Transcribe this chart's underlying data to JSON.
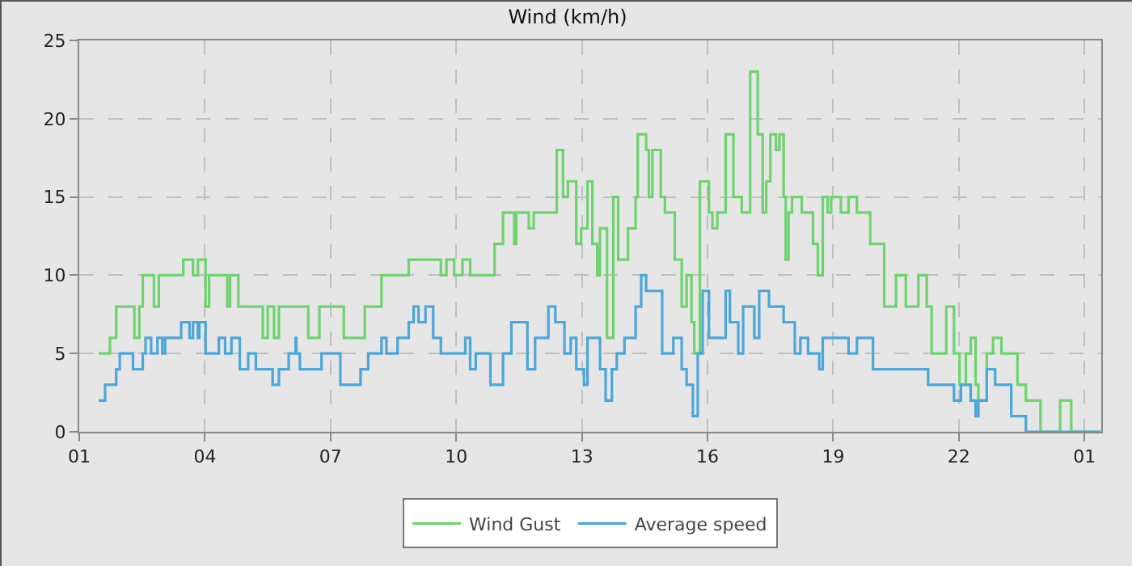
{
  "chart_data": {
    "type": "step",
    "title": "Wind (km/h)",
    "xlim": [
      "--01-01T01:00",
      "--01-02T01:24"
    ],
    "xticks": [
      {
        "value": "--01-01T01:00",
        "label": "01"
      },
      {
        "value": "--01-01T04:00",
        "label": "04"
      },
      {
        "value": "--01-01T07:00",
        "label": "07"
      },
      {
        "value": "--01-01T10:00",
        "label": "10"
      },
      {
        "value": "--01-01T13:00",
        "label": "13"
      },
      {
        "value": "--01-01T16:00",
        "label": "16"
      },
      {
        "value": "--01-01T19:00",
        "label": "19"
      },
      {
        "value": "--01-01T22:00",
        "label": "22"
      },
      {
        "value": "--01-02T01:00",
        "label": "01"
      }
    ],
    "ylim": [
      0,
      25
    ],
    "yticks": [
      0,
      5,
      10,
      15,
      20,
      25
    ],
    "grid": true,
    "legend": "bottom",
    "line_style": "solid",
    "marker": "none",
    "series": [
      {
        "name": "Wind Gust",
        "color": "#6ed36e",
        "x": [
          "--01-01T01:28",
          "--01-01T01:44",
          "--01-01T01:53",
          "--01-01T02:19",
          "--01-01T02:26",
          "--01-01T02:31",
          "--01-01T02:47",
          "--01-01T02:54",
          "--01-01T03:29",
          "--01-01T03:43",
          "--01-01T03:50",
          "--01-01T04:01",
          "--01-01T04:06",
          "--01-01T04:32",
          "--01-01T04:36",
          "--01-01T04:48",
          "--01-01T05:23",
          "--01-01T05:30",
          "--01-01T05:39",
          "--01-01T05:46",
          "--01-01T06:28",
          "--01-01T06:44",
          "--01-01T07:19",
          "--01-01T07:49",
          "--01-01T08:13",
          "--01-01T08:52",
          "--01-01T09:38",
          "--01-01T09:46",
          "--01-01T09:57",
          "--01-01T10:09",
          "--01-01T10:20",
          "--01-01T10:55",
          "--01-01T11:07",
          "--01-01T11:23",
          "--01-01T11:26",
          "--01-01T11:44",
          "--01-01T11:51",
          "--01-01T12:24",
          "--01-01T12:33",
          "--01-01T12:40",
          "--01-01T12:52",
          "--01-01T12:59",
          "--01-01T13:08",
          "--01-01T13:15",
          "--01-01T13:22",
          "--01-01T13:26",
          "--01-01T13:36",
          "--01-01T13:45",
          "--01-01T13:52",
          "--01-01T14:06",
          "--01-01T14:17",
          "--01-01T14:20",
          "--01-01T14:32",
          "--01-01T14:36",
          "--01-01T14:41",
          "--01-01T14:53",
          "--01-01T14:59",
          "--01-01T15:13",
          "--01-01T15:23",
          "--01-01T15:30",
          "--01-01T15:37",
          "--01-01T15:41",
          "--01-01T15:49",
          "--01-01T16:02",
          "--01-01T16:07",
          "--01-01T16:14",
          "--01-01T16:26",
          "--01-01T16:37",
          "--01-01T16:49",
          "--01-01T17:01",
          "--01-01T17:12",
          "--01-01T17:19",
          "--01-01T17:24",
          "--01-01T17:30",
          "--01-01T17:38",
          "--01-01T17:43",
          "--01-01T17:49",
          "--01-01T17:52",
          "--01-01T17:56",
          "--01-01T18:01",
          "--01-01T18:15",
          "--01-01T18:31",
          "--01-01T18:38",
          "--01-01T18:45",
          "--01-01T18:52",
          "--01-01T18:57",
          "--01-01T19:11",
          "--01-01T19:22",
          "--01-01T19:34",
          "--01-01T19:53",
          "--01-01T20:13",
          "--01-01T20:30",
          "--01-01T20:44",
          "--01-01T21:02",
          "--01-01T21:14",
          "--01-01T21:21",
          "--01-01T21:42",
          "--01-01T21:53",
          "--01-01T22:01",
          "--01-01T22:10",
          "--01-01T22:17",
          "--01-01T22:24",
          "--01-01T22:28",
          "--01-01T22:40",
          "--01-01T22:49",
          "--01-01T23:01",
          "--01-01T23:24",
          "--01-01T23:36",
          "--01-01T23:57",
          "--01-02T00:25",
          "--01-02T00:41",
          "--01-02T01:23"
        ],
        "values": [
          5,
          6,
          8,
          6,
          8,
          10,
          8,
          10,
          11,
          10,
          11,
          8,
          10,
          8,
          10,
          8,
          6,
          8,
          6,
          8,
          6,
          8,
          6,
          8,
          10,
          11,
          10,
          11,
          10,
          11,
          10,
          12,
          14,
          12,
          14,
          13,
          14,
          18,
          15,
          16,
          12,
          13,
          16,
          12,
          10,
          13,
          6,
          15,
          11,
          13,
          15,
          19,
          18,
          15,
          18,
          15,
          14,
          11,
          8,
          10,
          7,
          5,
          16,
          14,
          13,
          14,
          19,
          15,
          14,
          23,
          19,
          14,
          16,
          19,
          18,
          19,
          15,
          11,
          14,
          15,
          14,
          12,
          10,
          15,
          14,
          15,
          14,
          15,
          14,
          12,
          8,
          10,
          8,
          10,
          8,
          5,
          8,
          5,
          3,
          5,
          6,
          3,
          2,
          5,
          6,
          5,
          3,
          2,
          0,
          2,
          0,
          0
        ]
      },
      {
        "name": "Average speed",
        "color": "#4ba6d9",
        "x": [
          "--01-01T01:28",
          "--01-01T01:37",
          "--01-01T01:53",
          "--01-01T01:58",
          "--01-01T02:17",
          "--01-01T02:31",
          "--01-01T02:35",
          "--01-01T02:43",
          "--01-01T02:52",
          "--01-01T02:59",
          "--01-01T03:03",
          "--01-01T03:26",
          "--01-01T03:38",
          "--01-01T03:43",
          "--01-01T03:50",
          "--01-01T03:52",
          "--01-01T04:01",
          "--01-01T04:20",
          "--01-01T04:29",
          "--01-01T04:38",
          "--01-01T04:50",
          "--01-01T05:02",
          "--01-01T05:13",
          "--01-01T05:37",
          "--01-01T05:46",
          "--01-01T06:00",
          "--01-01T06:10",
          "--01-01T06:11",
          "--01-01T06:16",
          "--01-01T06:47",
          "--01-01T07:14",
          "--01-01T07:43",
          "--01-01T07:54",
          "--01-01T08:13",
          "--01-01T08:20",
          "--01-01T08:36",
          "--01-01T08:52",
          "--01-01T08:59",
          "--01-01T09:06",
          "--01-01T09:16",
          "--01-01T09:27",
          "--01-01T09:38",
          "--01-01T10:13",
          "--01-01T10:20",
          "--01-01T10:28",
          "--01-01T10:49",
          "--01-01T11:07",
          "--01-01T11:19",
          "--01-01T11:42",
          "--01-01T11:53",
          "--01-01T12:12",
          "--01-01T12:22",
          "--01-01T12:35",
          "--01-01T12:44",
          "--01-01T12:52",
          "--01-01T13:03",
          "--01-01T13:08",
          "--01-01T13:26",
          "--01-01T13:34",
          "--01-01T13:43",
          "--01-01T13:50",
          "--01-01T14:01",
          "--01-01T14:17",
          "--01-01T14:25",
          "--01-01T14:32",
          "--01-01T14:55",
          "--01-01T15:11",
          "--01-01T15:23",
          "--01-01T15:30",
          "--01-01T15:39",
          "--01-01T15:46",
          "--01-01T15:53",
          "--01-01T16:02",
          "--01-01T16:26",
          "--01-01T16:32",
          "--01-01T16:44",
          "--01-01T16:51",
          "--01-01T17:07",
          "--01-01T17:14",
          "--01-01T17:21",
          "--01-01T17:28",
          "--01-01T17:49",
          "--01-01T18:05",
          "--01-01T18:13",
          "--01-01T18:24",
          "--01-01T18:40",
          "--01-01T18:45",
          "--01-01T19:22",
          "--01-01T19:34",
          "--01-01T19:57",
          "--01-01T21:16",
          "--01-01T21:53",
          "--01-01T22:03",
          "--01-01T22:17",
          "--01-01T22:24",
          "--01-01T22:28",
          "--01-01T22:40",
          "--01-01T22:52",
          "--01-01T23:15",
          "--01-01T23:36",
          "--01-02T01:23"
        ],
        "values": [
          2,
          3,
          4,
          5,
          4,
          5,
          6,
          5,
          6,
          5,
          6,
          7,
          6,
          7,
          6,
          7,
          5,
          6,
          5,
          6,
          4,
          5,
          4,
          3,
          4,
          5,
          6,
          5,
          4,
          5,
          3,
          4,
          5,
          6,
          5,
          6,
          7,
          8,
          7,
          8,
          6,
          5,
          6,
          4,
          5,
          3,
          5,
          7,
          4,
          6,
          8,
          7,
          5,
          6,
          4,
          3,
          6,
          4,
          2,
          4,
          5,
          6,
          8,
          10,
          9,
          5,
          6,
          4,
          3,
          1,
          5,
          9,
          6,
          9,
          7,
          5,
          8,
          6,
          9,
          9,
          8,
          7,
          5,
          6,
          5,
          4,
          6,
          5,
          6,
          4,
          3,
          2,
          3,
          2,
          1,
          2,
          4,
          3,
          1,
          0,
          0
        ]
      }
    ]
  }
}
